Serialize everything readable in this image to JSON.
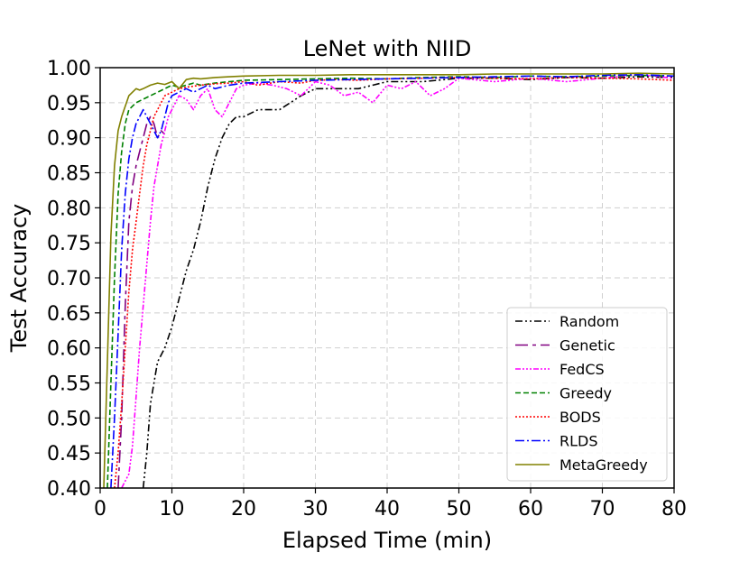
{
  "chart_data": {
    "type": "line",
    "title": "LeNet with NIID",
    "xlabel": "Elapsed Time (min)",
    "ylabel": "Test Accuracy",
    "xlim": [
      0,
      80
    ],
    "ylim": [
      0.4,
      1.0
    ],
    "xticks": [
      0,
      10,
      20,
      30,
      40,
      50,
      60,
      70,
      80
    ],
    "xtick_labels": [
      "0",
      "10",
      "20",
      "30",
      "40",
      "50",
      "60",
      "70",
      "80"
    ],
    "yticks": [
      0.4,
      0.45,
      0.5,
      0.55,
      0.6,
      0.65,
      0.7,
      0.75,
      0.8,
      0.85,
      0.9,
      0.95,
      1.0
    ],
    "ytick_labels": [
      "0.40",
      "0.45",
      "0.50",
      "0.55",
      "0.60",
      "0.65",
      "0.70",
      "0.75",
      "0.80",
      "0.85",
      "0.90",
      "0.95",
      "1.00"
    ],
    "grid": true,
    "legend_position": "lower-right",
    "series": [
      {
        "name": "Random",
        "color": "#000000",
        "dash": "8 3 2 3 2 3",
        "x": [
          6,
          6.5,
          7,
          7.5,
          8,
          9,
          10,
          11,
          12,
          13,
          14,
          15,
          16,
          17,
          18,
          19,
          20,
          22,
          25,
          28,
          30,
          33,
          36,
          40,
          45,
          50,
          55,
          60,
          65,
          70,
          75,
          80
        ],
        "y": [
          0.4,
          0.45,
          0.52,
          0.55,
          0.58,
          0.6,
          0.63,
          0.67,
          0.71,
          0.74,
          0.78,
          0.83,
          0.87,
          0.9,
          0.92,
          0.93,
          0.93,
          0.94,
          0.94,
          0.96,
          0.97,
          0.97,
          0.97,
          0.98,
          0.98,
          0.985,
          0.985,
          0.983,
          0.986,
          0.985,
          0.987,
          0.986
        ]
      },
      {
        "name": "Genetic",
        "color": "#800080",
        "dash": "14 5 4 5",
        "x": [
          2.5,
          3,
          3.5,
          4,
          4.5,
          5,
          5.5,
          6,
          6.5,
          7,
          7.5,
          8,
          8.5,
          9
        ],
        "y": [
          0.4,
          0.5,
          0.66,
          0.78,
          0.83,
          0.86,
          0.88,
          0.9,
          0.92,
          0.93,
          0.92,
          0.9,
          0.91,
          0.905
        ]
      },
      {
        "name": "FedCS",
        "color": "#ff00ff",
        "dash": "6 2 2 2 2 2 2 2",
        "x": [
          3,
          3.5,
          4,
          4.5,
          5,
          5.5,
          6,
          6.5,
          7,
          7.5,
          8,
          8.5,
          9,
          9.5,
          10,
          11,
          12,
          13,
          14,
          15,
          16,
          17,
          18,
          19,
          20,
          22,
          24,
          26,
          28,
          30,
          32,
          34,
          36,
          38,
          40,
          42,
          44,
          46,
          48,
          50,
          55,
          60,
          65,
          70,
          75,
          80
        ],
        "y": [
          0.4,
          0.41,
          0.42,
          0.46,
          0.53,
          0.6,
          0.66,
          0.72,
          0.78,
          0.83,
          0.86,
          0.89,
          0.91,
          0.93,
          0.94,
          0.96,
          0.955,
          0.94,
          0.96,
          0.97,
          0.94,
          0.93,
          0.95,
          0.97,
          0.975,
          0.978,
          0.975,
          0.97,
          0.96,
          0.98,
          0.975,
          0.96,
          0.965,
          0.95,
          0.975,
          0.97,
          0.98,
          0.96,
          0.97,
          0.985,
          0.98,
          0.985,
          0.98,
          0.985,
          0.99,
          0.985
        ]
      },
      {
        "name": "Greedy",
        "color": "#008000",
        "dash": "6 3",
        "x": [
          1,
          1.5,
          2,
          2.5,
          3,
          3.5,
          4,
          5,
          6,
          7,
          8,
          9,
          10,
          11,
          12,
          13,
          14,
          16,
          18,
          20,
          25,
          30,
          35,
          40,
          45,
          50,
          55,
          60,
          65,
          70,
          75,
          80
        ],
        "y": [
          0.4,
          0.55,
          0.7,
          0.82,
          0.88,
          0.92,
          0.94,
          0.95,
          0.955,
          0.96,
          0.965,
          0.97,
          0.975,
          0.972,
          0.975,
          0.978,
          0.975,
          0.978,
          0.98,
          0.982,
          0.983,
          0.984,
          0.985,
          0.984,
          0.986,
          0.987,
          0.986,
          0.988,
          0.987,
          0.988,
          0.989,
          0.988
        ]
      },
      {
        "name": "BODS",
        "color": "#ff0000",
        "dash": "2 2",
        "x": [
          2,
          2.5,
          3,
          3.5,
          4,
          4.5,
          5,
          5.5,
          6,
          6.5,
          7,
          7.5,
          8,
          8.5,
          9,
          10,
          11,
          12,
          14,
          16,
          18,
          20,
          22,
          25,
          28,
          30,
          33,
          36,
          40,
          45,
          50,
          55,
          60,
          65,
          70,
          75,
          80
        ],
        "y": [
          0.4,
          0.45,
          0.52,
          0.6,
          0.68,
          0.74,
          0.78,
          0.82,
          0.86,
          0.89,
          0.91,
          0.93,
          0.94,
          0.95,
          0.96,
          0.965,
          0.97,
          0.972,
          0.975,
          0.977,
          0.978,
          0.98,
          0.975,
          0.98,
          0.978,
          0.982,
          0.983,
          0.982,
          0.984,
          0.985,
          0.986,
          0.985,
          0.984,
          0.986,
          0.985,
          0.984,
          0.982
        ]
      },
      {
        "name": "RLDS",
        "color": "#0000ff",
        "dash": "10 3 2 3",
        "x": [
          1.5,
          2,
          2.5,
          3,
          3.5,
          4,
          4.5,
          5,
          5.5,
          6,
          6.5,
          7,
          7.5,
          8,
          8.5,
          9,
          9.5,
          10,
          11,
          12,
          13,
          14,
          15,
          16,
          18,
          20,
          25,
          30,
          35,
          40,
          45,
          50,
          55,
          60,
          65,
          70,
          75,
          80
        ],
        "y": [
          0.4,
          0.5,
          0.62,
          0.74,
          0.82,
          0.87,
          0.9,
          0.92,
          0.93,
          0.94,
          0.93,
          0.92,
          0.91,
          0.9,
          0.91,
          0.93,
          0.95,
          0.96,
          0.965,
          0.97,
          0.965,
          0.97,
          0.975,
          0.97,
          0.975,
          0.978,
          0.98,
          0.982,
          0.983,
          0.984,
          0.985,
          0.986,
          0.987,
          0.988,
          0.987,
          0.989,
          0.99,
          0.988
        ]
      },
      {
        "name": "MetaGreedy",
        "color": "#808000",
        "dash": "",
        "x": [
          0.5,
          1,
          1.5,
          2,
          2.5,
          3,
          3.5,
          4,
          4.5,
          5,
          5.5,
          6,
          7,
          8,
          9,
          10,
          11,
          12,
          13,
          14,
          16,
          18,
          20,
          25,
          30,
          35,
          40,
          45,
          50,
          55,
          60,
          65,
          70,
          75,
          80
        ],
        "y": [
          0.4,
          0.58,
          0.76,
          0.86,
          0.91,
          0.93,
          0.945,
          0.96,
          0.965,
          0.97,
          0.968,
          0.97,
          0.975,
          0.978,
          0.976,
          0.98,
          0.97,
          0.983,
          0.985,
          0.984,
          0.986,
          0.987,
          0.988,
          0.989,
          0.989,
          0.99,
          0.99,
          0.99,
          0.99,
          0.991,
          0.991,
          0.991,
          0.991,
          0.992,
          0.991
        ]
      }
    ]
  }
}
